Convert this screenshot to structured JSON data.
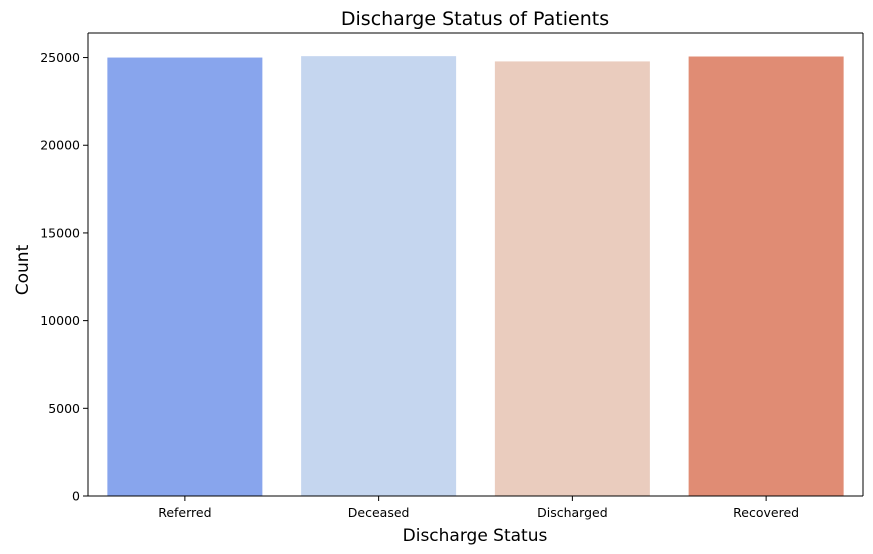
{
  "chart_data": {
    "type": "bar",
    "title": "Discharge Status of Patients",
    "xlabel": "Discharge Status",
    "ylabel": "Count",
    "categories": [
      "Referred",
      "Deceased",
      "Discharged",
      "Recovered"
    ],
    "values": [
      25000,
      25080,
      24780,
      25060
    ],
    "colors": [
      "#88a5ed",
      "#c5d6ef",
      "#eaccbe",
      "#e08c74"
    ],
    "ylim": [
      0,
      26400
    ],
    "yticks": [
      0,
      5000,
      10000,
      15000,
      20000,
      25000
    ],
    "grid": false,
    "legend": "none"
  }
}
